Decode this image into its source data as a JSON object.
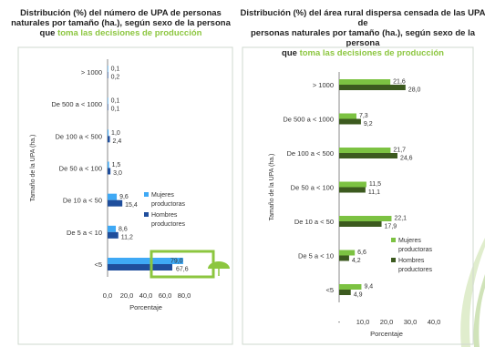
{
  "colors": {
    "left_mujeres": "#3fa9f5",
    "left_hombres": "#1f4e9c",
    "right_mujeres": "#7cc242",
    "right_hombres": "#3c5a1f",
    "highlight": "#8cc63f",
    "title_accent": "#8cc63f"
  },
  "left": {
    "title_line1": "Distribución (%) del número de UPA de personas",
    "title_line2": "naturales por tamaño (ha.), según sexo de la persona",
    "title_line3_pre": "que ",
    "title_line3_hl": "toma las decisiones de producción",
    "icon": "umbrella-icon"
  },
  "right": {
    "title_line1": "Distribución (%) del área rural dispersa censada de las UPA de",
    "title_line2": "personas naturales por tamaño (ha.), según sexo de la persona",
    "title_line3_pre": "que ",
    "title_line3_hl": "toma las decisiones de producción"
  },
  "chart_data": [
    {
      "type": "bar",
      "orientation": "horizontal",
      "categories": [
        "> 1000",
        "De 500 a < 1000",
        "De 100 a < 500",
        "De 50 a < 100",
        "De 10 a < 50",
        "De 5 a < 10",
        "<5"
      ],
      "series": [
        {
          "name": "Mujeres productoras",
          "values": [
            0.1,
            0.1,
            1.0,
            1.5,
            9.6,
            8.6,
            79.0
          ]
        },
        {
          "name": "Hombres productores",
          "values": [
            0.2,
            0.1,
            2.4,
            3.0,
            15.4,
            11.2,
            67.6
          ]
        }
      ],
      "value_labels": {
        "Mujeres productoras": [
          "0,1",
          "0,1",
          "1,0",
          "1,5",
          "9,6",
          "8,6",
          "79,0"
        ],
        "Hombres productores": [
          "0,2",
          "0,1",
          "2,4",
          "3,0",
          "15,4",
          "11,2",
          "67,6"
        ]
      },
      "xlabel": "Porcentaje",
      "ylabel": "Tamaño de la UPA (ha.)",
      "xlim": [
        0,
        80
      ],
      "xticks": [
        "0,0",
        "20,0",
        "40,0",
        "60,0",
        "80,0"
      ],
      "legend": [
        "Mujeres productoras",
        "Hombres productores"
      ],
      "legend_placement": "right",
      "highlighted_category": "<5"
    },
    {
      "type": "bar",
      "orientation": "horizontal",
      "categories": [
        "> 1000",
        "De 500 a < 1000",
        "De 100 a < 500",
        "De 50 a < 100",
        "De 10 a < 50",
        "De 5 a < 10",
        "<5"
      ],
      "series": [
        {
          "name": "Mujeres productoras",
          "values": [
            21.6,
            7.3,
            21.7,
            11.5,
            22.1,
            6.6,
            9.4
          ]
        },
        {
          "name": "Hombres productores",
          "values": [
            28.0,
            9.2,
            24.6,
            11.1,
            17.9,
            4.2,
            4.9
          ]
        }
      ],
      "value_labels": {
        "Mujeres productoras": [
          "21,6",
          "7,3",
          "21,7",
          "11,5",
          "22,1",
          "6,6",
          "9,4"
        ],
        "Hombres productores": [
          "28,0",
          "9,2",
          "24,6",
          "11,1",
          "17,9",
          "4,2",
          "4,9"
        ]
      },
      "xlabel": "Porcentaje",
      "ylabel": "Tamaño de la UPA (ha.)",
      "xlim": [
        0,
        40
      ],
      "xticks": [
        "-",
        "10,0",
        "20,0",
        "30,0",
        "40,0"
      ],
      "legend": [
        "Mujeres productoras",
        "Hombres productores"
      ],
      "legend_placement": "right"
    }
  ]
}
